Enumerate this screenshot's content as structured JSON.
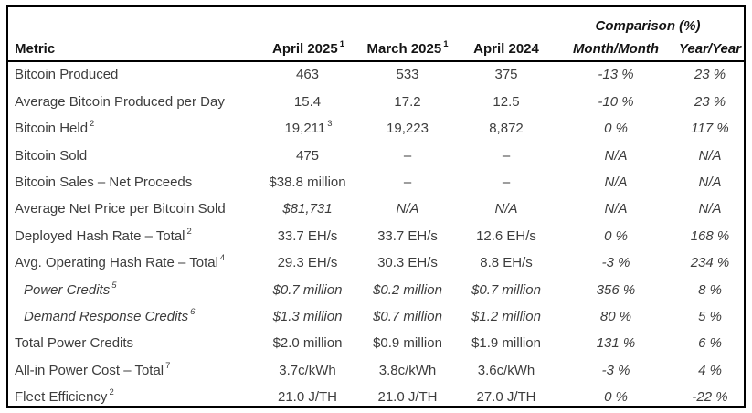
{
  "colors": {
    "border": "#000000",
    "header_text": "#141414",
    "body_text": "#3d3d3d",
    "background": "#ffffff"
  },
  "table": {
    "comparison_header": "Comparison (%)",
    "columns": {
      "metric": {
        "label": "Metric",
        "sup": ""
      },
      "apr25": {
        "label": "April 2025",
        "sup": "1"
      },
      "mar25": {
        "label": "March 2025",
        "sup": "1"
      },
      "apr24": {
        "label": "April 2024",
        "sup": ""
      },
      "mm": {
        "label": "Month/Month",
        "sup": ""
      },
      "yy": {
        "label": "Year/Year",
        "sup": ""
      }
    },
    "rows": [
      {
        "metric": "Bitcoin Produced",
        "sup": "",
        "apr25": "463",
        "apr25_sup": "",
        "mar25": "533",
        "apr24": "375",
        "mm": "-13 %",
        "yy": "23 %"
      },
      {
        "metric": "Average Bitcoin Produced per Day",
        "sup": "",
        "apr25": "15.4",
        "apr25_sup": "",
        "mar25": "17.2",
        "apr24": "12.5",
        "mm": "-10 %",
        "yy": "23 %"
      },
      {
        "metric": "Bitcoin Held",
        "sup": "2",
        "apr25": "19,211",
        "apr25_sup": "3",
        "mar25": "19,223",
        "apr24": "8,872",
        "mm": "0 %",
        "yy": "117 %"
      },
      {
        "metric": "Bitcoin Sold",
        "sup": "",
        "apr25": "475",
        "apr25_sup": "",
        "mar25": "–",
        "apr24": "–",
        "mm": "N/A",
        "yy": "N/A"
      },
      {
        "metric": "Bitcoin Sales – Net Proceeds",
        "sup": "",
        "apr25": "$38.8 million",
        "apr25_sup": "",
        "mar25": "–",
        "apr24": "–",
        "mm": "N/A",
        "yy": "N/A"
      },
      {
        "metric": "Average Net Price per Bitcoin Sold",
        "sup": "",
        "apr25": "$81,731",
        "apr25_sup": "",
        "mar25": "N/A",
        "apr24": "N/A",
        "mm": "N/A",
        "yy": "N/A",
        "italic_values": true
      },
      {
        "metric": "Deployed Hash Rate – Total",
        "sup": "2",
        "apr25": "33.7 EH/s",
        "apr25_sup": "",
        "mar25": "33.7 EH/s",
        "apr24": "12.6 EH/s",
        "mm": "0 %",
        "yy": "168 %"
      },
      {
        "metric": "Avg. Operating Hash Rate – Total",
        "sup": "4",
        "apr25": "29.3 EH/s",
        "apr25_sup": "",
        "mar25": "30.3 EH/s",
        "apr24": "8.8 EH/s",
        "mm": "-3 %",
        "yy": "234 %"
      },
      {
        "metric": "Power Credits",
        "sup": "5",
        "apr25": "$0.7 million",
        "apr25_sup": "",
        "mar25": "$0.2 million",
        "apr24": "$0.7 million",
        "mm": "356 %",
        "yy": "8 %",
        "sub": true
      },
      {
        "metric": "Demand Response Credits",
        "sup": "6",
        "apr25": "$1.3 million",
        "apr25_sup": "",
        "mar25": "$0.7 million",
        "apr24": "$1.2 million",
        "mm": "80 %",
        "yy": "5 %",
        "sub": true
      },
      {
        "metric": "Total Power Credits",
        "sup": "",
        "apr25": "$2.0 million",
        "apr25_sup": "",
        "mar25": "$0.9 million",
        "apr24": "$1.9 million",
        "mm": "131 %",
        "yy": "6 %"
      },
      {
        "metric": "All-in Power Cost – Total",
        "sup": "7",
        "apr25": "3.7c/kWh",
        "apr25_sup": "",
        "mar25": "3.8c/kWh",
        "apr24": "3.6c/kWh",
        "mm": "-3 %",
        "yy": "4 %"
      },
      {
        "metric": "Fleet Efficiency",
        "sup": "2",
        "apr25": "21.0 J/TH",
        "apr25_sup": "",
        "mar25": "21.0 J/TH",
        "apr24": "27.0 J/TH",
        "mm": "0 %",
        "yy": "-22 %"
      }
    ]
  }
}
